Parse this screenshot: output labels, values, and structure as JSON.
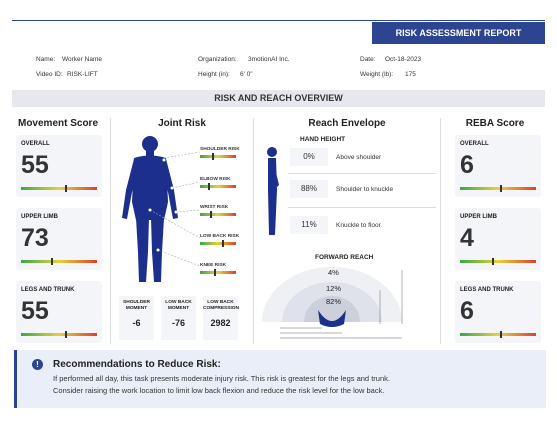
{
  "header": {
    "title": "RISK ASSESSMENT REPORT"
  },
  "info": [
    {
      "label": "Name:",
      "value": "Worker Name"
    },
    {
      "label": "Organization:",
      "value": "3motionAI Inc."
    },
    {
      "label": "Date:",
      "value": "Oct-18-2023"
    },
    {
      "label": "Video ID:",
      "value": "RISK-LIFT"
    },
    {
      "label": "Height (in):",
      "value": "6' 0\""
    },
    {
      "label": "Weight (lb):",
      "value": "175"
    }
  ],
  "overview": {
    "title": "RISK AND REACH OVERVIEW"
  },
  "movement": {
    "title": "Movement Score",
    "cards": [
      {
        "label": "OVERALL",
        "score": 55
      },
      {
        "label": "UPPER LIMB",
        "score": 73
      },
      {
        "label": "LEGS AND TRUNK",
        "score": 55
      }
    ]
  },
  "joint": {
    "title": "Joint Risk",
    "risks": [
      "SHOULDER RISK",
      "ELBOW RISK",
      "WRIST RISK",
      "LOW BACK RISK",
      "KNEE RISK"
    ],
    "moments": [
      {
        "label": "SHOULDER MOMENT",
        "value": -6
      },
      {
        "label": "LOW BACK MOMENT",
        "value": -76
      },
      {
        "label": "LOW BACK COMPRESSION",
        "value": 2982
      }
    ]
  },
  "reach": {
    "title": "Reach Envelope",
    "hand_height": {
      "title": "HAND HEIGHT",
      "rows": [
        {
          "percent": "0%",
          "label": "Above shoulder"
        },
        {
          "percent": "88%",
          "label": "Shoulder to knuckle"
        },
        {
          "percent": "11%",
          "label": "Knuckle to floor"
        }
      ]
    },
    "forward_reach": {
      "title": "FORWARD REACH",
      "percents": [
        "4%",
        "12%",
        "82%"
      ]
    }
  },
  "reba": {
    "title": "REBA Score",
    "cards": [
      {
        "label": "OVERALL",
        "score": 6
      },
      {
        "label": "UPPER LIMB",
        "score": 4
      },
      {
        "label": "LEGS AND TRUNK",
        "score": 6
      }
    ]
  },
  "recommendations": {
    "title": "Recommendations to Reduce Risk:",
    "lines": [
      "If performed all day, this task presents moderate injury risk. This risk is greatest for the legs and trunk.",
      "Consider raising the work location to limit low back flexion and reduce the risk level for the low back."
    ]
  }
}
